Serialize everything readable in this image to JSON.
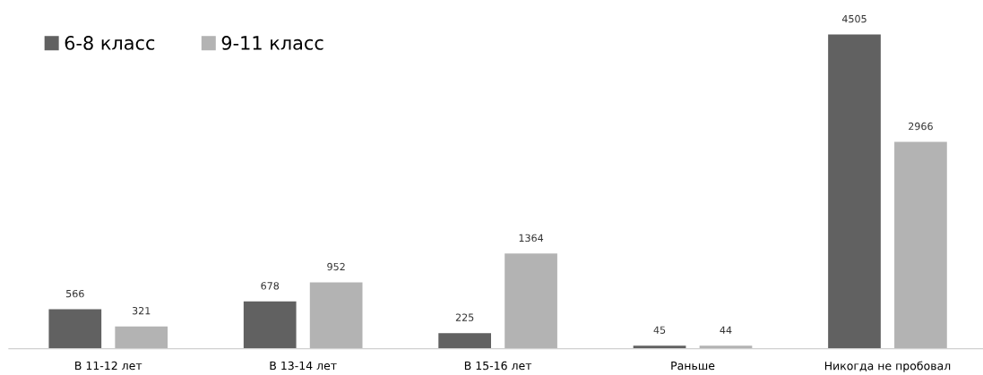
{
  "chart_data": {
    "type": "bar",
    "categories": [
      "В 11-12 лет",
      "В 13-14 лет",
      "В 15-16 лет",
      "Раньше",
      "Никогда не пробовал"
    ],
    "series": [
      {
        "name": "6-8 класс",
        "color": "#616161",
        "values": [
          566,
          678,
          225,
          45,
          4505
        ]
      },
      {
        "name": "9-11 класс",
        "color": "#b3b3b3",
        "values": [
          321,
          952,
          1364,
          44,
          2966
        ]
      }
    ],
    "tick_labels": "x",
    "data_labels": true,
    "legend": "top left"
  }
}
